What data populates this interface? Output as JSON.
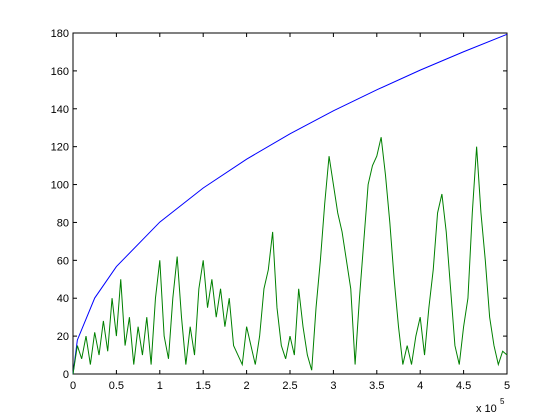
{
  "chart_data": {
    "type": "line",
    "x_scale_label": "x 10",
    "x_scale_exponent": "5",
    "xlim": [
      0,
      500000
    ],
    "xticks": [
      0,
      {
        "value": 50000,
        "label": "0.5"
      },
      {
        "value": 100000,
        "label": "1"
      },
      {
        "value": 150000,
        "label": "1.5"
      },
      {
        "value": 200000,
        "label": "2"
      },
      {
        "value": 250000,
        "label": "2.5"
      },
      {
        "value": 300000,
        "label": "3"
      },
      {
        "value": 350000,
        "label": "3.5"
      },
      {
        "value": 400000,
        "label": "4"
      },
      {
        "value": 450000,
        "label": "4.5"
      },
      {
        "value": 500000,
        "label": "5"
      }
    ],
    "ylim": [
      0,
      180
    ],
    "yticks": [
      0,
      20,
      40,
      60,
      80,
      100,
      120,
      140,
      160,
      180
    ],
    "grid": false,
    "series": [
      {
        "color": "#0000ff",
        "x": [
          0,
          5000,
          25000,
          50000,
          100000,
          150000,
          200000,
          250000,
          300000,
          350000,
          400000,
          450000,
          500000
        ],
        "values": [
          0,
          17.9,
          40.1,
          56.7,
          80.2,
          98.2,
          113.4,
          126.8,
          138.9,
          150.0,
          160.4,
          170.1,
          179.3
        ]
      },
      {
        "color": "#008000",
        "x": [
          0,
          5000,
          10000,
          15000,
          20000,
          25000,
          30000,
          35000,
          40000,
          45000,
          50000,
          55000,
          60000,
          65000,
          70000,
          75000,
          80000,
          85000,
          90000,
          95000,
          100000,
          105000,
          110000,
          115000,
          120000,
          125000,
          130000,
          135000,
          140000,
          145000,
          150000,
          155000,
          160000,
          165000,
          170000,
          175000,
          180000,
          185000,
          190000,
          195000,
          200000,
          205000,
          210000,
          215000,
          220000,
          225000,
          230000,
          235000,
          240000,
          245000,
          250000,
          255000,
          260000,
          265000,
          270000,
          275000,
          280000,
          285000,
          290000,
          295000,
          300000,
          305000,
          310000,
          315000,
          320000,
          325000,
          330000,
          335000,
          340000,
          345000,
          350000,
          355000,
          360000,
          365000,
          370000,
          375000,
          380000,
          385000,
          390000,
          395000,
          400000,
          405000,
          410000,
          415000,
          420000,
          425000,
          430000,
          435000,
          440000,
          445000,
          450000,
          455000,
          460000,
          465000,
          470000,
          475000,
          480000,
          485000,
          490000,
          495000,
          500000
        ],
        "values": [
          0,
          15,
          8,
          20,
          5,
          22,
          10,
          28,
          12,
          40,
          20,
          50,
          15,
          30,
          5,
          25,
          10,
          30,
          5,
          40,
          60,
          20,
          8,
          40,
          62,
          30,
          5,
          25,
          10,
          45,
          60,
          35,
          50,
          30,
          45,
          25,
          40,
          15,
          10,
          5,
          25,
          15,
          5,
          20,
          45,
          55,
          75,
          35,
          15,
          8,
          20,
          10,
          45,
          25,
          10,
          2,
          35,
          60,
          90,
          115,
          100,
          85,
          75,
          60,
          45,
          5,
          40,
          70,
          100,
          110,
          115,
          125,
          105,
          80,
          50,
          25,
          5,
          15,
          5,
          20,
          30,
          10,
          35,
          55,
          85,
          95,
          75,
          45,
          15,
          5,
          25,
          40,
          85,
          120,
          85,
          60,
          30,
          15,
          5,
          12,
          10
        ]
      }
    ]
  }
}
